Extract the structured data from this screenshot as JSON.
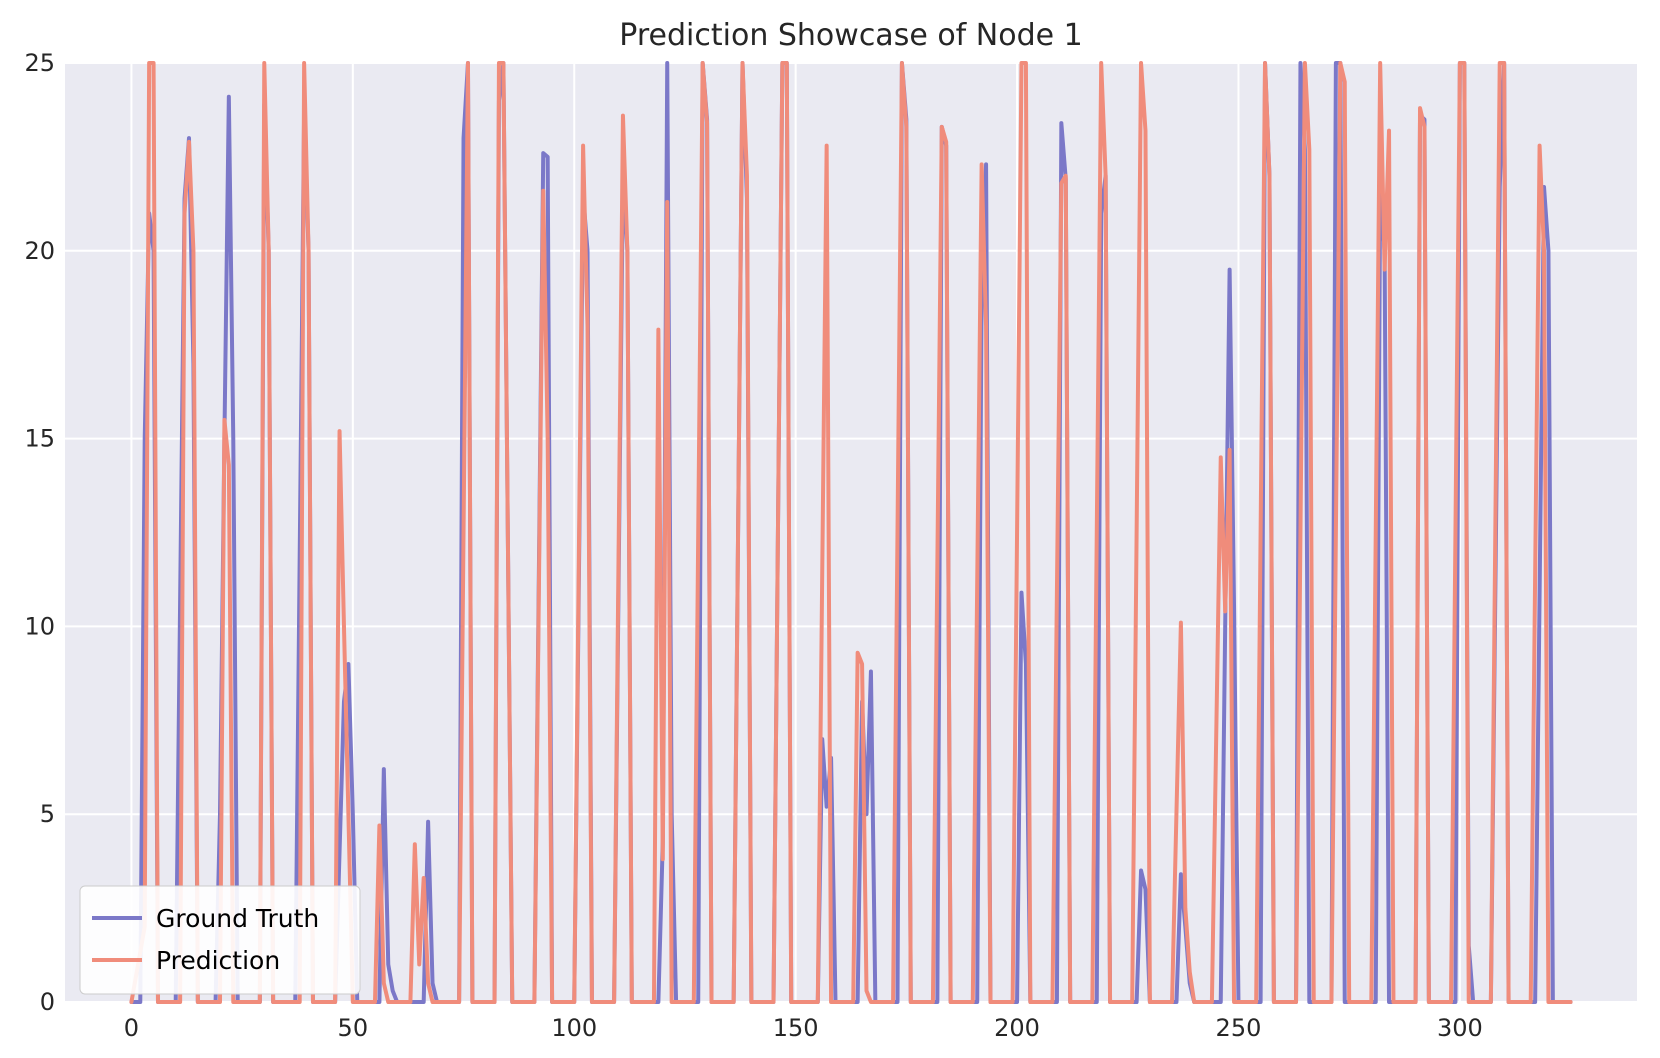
{
  "chart_data": {
    "type": "line",
    "title": "Prediction Showcase of Node 1",
    "xlabel": "",
    "ylabel": "",
    "xlim": [
      -15,
      340
    ],
    "ylim": [
      0,
      25
    ],
    "xticks": [
      0,
      50,
      100,
      150,
      200,
      250,
      300
    ],
    "yticks": [
      0,
      5,
      10,
      15,
      20,
      25
    ],
    "grid": true,
    "legend_position": "lower-left",
    "series": [
      {
        "name": "Ground Truth",
        "color": "#7b78c8",
        "points": [
          [
            0,
            0
          ],
          [
            2,
            0
          ],
          [
            3,
            15
          ],
          [
            4,
            21
          ],
          [
            5,
            20
          ],
          [
            6,
            0
          ],
          [
            10,
            0
          ],
          [
            12,
            21.4
          ],
          [
            13,
            23
          ],
          [
            14,
            17
          ],
          [
            15,
            0
          ],
          [
            19,
            0
          ],
          [
            20,
            5
          ],
          [
            21,
            15
          ],
          [
            22,
            24.1
          ],
          [
            23,
            15
          ],
          [
            24,
            0
          ],
          [
            29,
            0
          ],
          [
            30,
            23.9
          ],
          [
            31,
            20
          ],
          [
            32,
            0
          ],
          [
            37,
            0
          ],
          [
            39,
            23.7
          ],
          [
            40,
            20
          ],
          [
            41,
            0
          ],
          [
            46,
            0
          ],
          [
            48,
            8
          ],
          [
            49,
            9
          ],
          [
            50,
            5
          ],
          [
            51,
            0
          ],
          [
            56,
            0
          ],
          [
            57,
            6.2
          ],
          [
            58,
            1
          ],
          [
            59,
            0.3
          ],
          [
            60,
            0
          ],
          [
            66,
            0
          ],
          [
            67,
            4.8
          ],
          [
            68,
            0.5
          ],
          [
            69,
            0
          ],
          [
            74,
            0
          ],
          [
            75,
            23
          ],
          [
            76,
            25
          ],
          [
            77,
            0
          ],
          [
            82,
            0
          ],
          [
            83,
            24
          ],
          [
            84,
            25
          ],
          [
            86,
            0
          ],
          [
            91,
            0
          ],
          [
            93,
            22.6
          ],
          [
            94,
            22.5
          ],
          [
            95,
            0
          ],
          [
            100,
            0
          ],
          [
            102,
            21.5
          ],
          [
            103,
            20
          ],
          [
            104,
            0
          ],
          [
            109,
            0
          ],
          [
            111,
            22
          ],
          [
            112,
            20
          ],
          [
            113,
            0
          ],
          [
            119,
            0
          ],
          [
            120,
            4.3
          ],
          [
            121,
            25
          ],
          [
            122,
            5
          ],
          [
            123,
            0
          ],
          [
            128,
            0
          ],
          [
            129,
            25
          ],
          [
            130,
            23.5
          ],
          [
            131,
            0
          ],
          [
            136,
            0
          ],
          [
            138,
            25
          ],
          [
            139,
            21.4
          ],
          [
            140,
            0
          ],
          [
            145,
            0
          ],
          [
            147,
            25
          ],
          [
            148,
            25
          ],
          [
            149,
            0
          ],
          [
            155,
            0
          ],
          [
            156,
            7
          ],
          [
            157,
            5.2
          ],
          [
            158,
            6.5
          ],
          [
            159,
            0
          ],
          [
            164,
            0
          ],
          [
            165,
            8
          ],
          [
            166,
            5
          ],
          [
            167,
            8.8
          ],
          [
            168,
            0
          ],
          [
            173,
            0
          ],
          [
            174,
            25
          ],
          [
            175,
            23.5
          ],
          [
            176,
            0
          ],
          [
            182,
            0
          ],
          [
            183,
            23.3
          ],
          [
            184,
            22.8
          ],
          [
            185,
            0
          ],
          [
            191,
            0
          ],
          [
            192,
            19
          ],
          [
            193,
            22.3
          ],
          [
            194,
            0
          ],
          [
            200,
            0
          ],
          [
            201,
            10.9
          ],
          [
            202,
            9
          ],
          [
            203,
            0
          ],
          [
            209,
            0
          ],
          [
            210,
            23.4
          ],
          [
            211,
            21.9
          ],
          [
            212,
            0
          ],
          [
            218,
            0
          ],
          [
            219,
            21
          ],
          [
            220,
            22
          ],
          [
            221,
            0
          ],
          [
            227,
            0
          ],
          [
            228,
            3.5
          ],
          [
            229,
            3
          ],
          [
            230,
            0
          ],
          [
            236,
            0
          ],
          [
            237,
            3.4
          ],
          [
            238,
            2
          ],
          [
            239,
            0.5
          ],
          [
            240,
            0
          ],
          [
            246,
            0
          ],
          [
            247,
            10
          ],
          [
            248,
            19.5
          ],
          [
            249,
            10.5
          ],
          [
            250,
            0
          ],
          [
            255,
            0
          ],
          [
            256,
            25
          ],
          [
            257,
            22
          ],
          [
            258,
            0
          ],
          [
            263,
            0
          ],
          [
            264,
            25
          ],
          [
            265,
            22.7
          ],
          [
            266,
            0
          ],
          [
            271,
            0
          ],
          [
            272,
            25
          ],
          [
            273,
            25
          ],
          [
            274,
            0
          ],
          [
            281,
            0
          ],
          [
            282,
            21.8
          ],
          [
            283,
            20
          ],
          [
            284,
            0
          ],
          [
            290,
            0
          ],
          [
            291,
            23.6
          ],
          [
            292,
            23.5
          ],
          [
            293,
            0
          ],
          [
            299,
            0
          ],
          [
            300,
            25
          ],
          [
            301,
            25
          ],
          [
            302,
            1.5
          ],
          [
            303,
            0
          ],
          [
            307,
            0
          ],
          [
            309,
            21.7
          ],
          [
            310,
            25
          ],
          [
            311,
            0
          ],
          [
            317,
            0
          ],
          [
            319,
            21.7
          ],
          [
            320,
            20
          ],
          [
            321,
            0
          ],
          [
            325,
            0
          ]
        ]
      },
      {
        "name": "Prediction",
        "color": "#f08c7b",
        "points": [
          [
            0,
            0
          ],
          [
            3,
            2
          ],
          [
            4,
            25
          ],
          [
            5,
            25
          ],
          [
            6,
            0
          ],
          [
            11,
            0
          ],
          [
            12,
            21
          ],
          [
            13,
            22.9
          ],
          [
            14,
            20
          ],
          [
            15,
            0
          ],
          [
            20,
            0
          ],
          [
            21,
            15.5
          ],
          [
            22,
            14.3
          ],
          [
            23,
            0
          ],
          [
            29,
            0
          ],
          [
            30,
            25
          ],
          [
            31,
            20
          ],
          [
            32,
            0
          ],
          [
            38,
            0
          ],
          [
            39,
            25
          ],
          [
            40,
            20
          ],
          [
            41,
            0
          ],
          [
            46,
            0
          ],
          [
            47,
            15.2
          ],
          [
            48,
            10
          ],
          [
            49,
            5
          ],
          [
            50,
            0
          ],
          [
            55,
            0
          ],
          [
            56,
            4.7
          ],
          [
            57,
            0.5
          ],
          [
            58,
            0
          ],
          [
            63,
            0
          ],
          [
            64,
            4.2
          ],
          [
            65,
            1
          ],
          [
            66,
            3.3
          ],
          [
            67,
            0.5
          ],
          [
            68,
            0
          ],
          [
            74,
            0
          ],
          [
            76,
            25
          ],
          [
            77,
            0
          ],
          [
            82,
            0
          ],
          [
            83,
            25
          ],
          [
            84,
            25
          ],
          [
            86,
            0
          ],
          [
            91,
            0
          ],
          [
            93,
            21.6
          ],
          [
            94,
            15
          ],
          [
            95,
            0
          ],
          [
            100,
            0
          ],
          [
            102,
            22.8
          ],
          [
            103,
            18
          ],
          [
            104,
            0
          ],
          [
            109,
            0
          ],
          [
            111,
            23.6
          ],
          [
            112,
            20
          ],
          [
            113,
            0
          ],
          [
            118,
            0
          ],
          [
            119,
            17.9
          ],
          [
            120,
            3.8
          ],
          [
            121,
            21.3
          ],
          [
            122,
            0
          ],
          [
            127,
            0
          ],
          [
            129,
            25
          ],
          [
            130,
            23.4
          ],
          [
            131,
            0
          ],
          [
            136,
            0
          ],
          [
            138,
            25
          ],
          [
            139,
            22
          ],
          [
            140,
            0
          ],
          [
            145,
            0
          ],
          [
            147,
            25
          ],
          [
            148,
            25
          ],
          [
            149,
            0
          ],
          [
            155,
            0
          ],
          [
            157,
            22.8
          ],
          [
            158,
            0
          ],
          [
            163,
            0
          ],
          [
            164,
            9.3
          ],
          [
            165,
            9
          ],
          [
            166,
            0.3
          ],
          [
            167,
            0
          ],
          [
            172,
            0
          ],
          [
            174,
            25
          ],
          [
            175,
            23.3
          ],
          [
            176,
            0
          ],
          [
            181,
            0
          ],
          [
            183,
            23.3
          ],
          [
            184,
            22.9
          ],
          [
            185,
            0
          ],
          [
            190,
            0
          ],
          [
            192,
            22.3
          ],
          [
            193,
            18
          ],
          [
            194,
            0
          ],
          [
            199,
            0
          ],
          [
            201,
            25
          ],
          [
            202,
            25
          ],
          [
            203,
            0
          ],
          [
            208,
            0
          ],
          [
            210,
            21.8
          ],
          [
            211,
            22
          ],
          [
            212,
            0
          ],
          [
            217,
            0
          ],
          [
            219,
            25
          ],
          [
            220,
            22
          ],
          [
            221,
            0
          ],
          [
            226,
            0
          ],
          [
            228,
            25
          ],
          [
            229,
            23.2
          ],
          [
            230,
            0
          ],
          [
            235,
            0
          ],
          [
            237,
            10.1
          ],
          [
            238,
            2.5
          ],
          [
            239,
            0.8
          ],
          [
            240,
            0
          ],
          [
            244,
            0
          ],
          [
            246,
            14.5
          ],
          [
            247,
            10.4
          ],
          [
            248,
            14.7
          ],
          [
            249,
            0
          ],
          [
            254,
            0
          ],
          [
            256,
            25
          ],
          [
            257,
            22
          ],
          [
            258,
            0
          ],
          [
            263,
            0
          ],
          [
            265,
            25
          ],
          [
            266,
            22.7
          ],
          [
            267,
            0
          ],
          [
            271,
            0
          ],
          [
            273,
            25
          ],
          [
            274,
            24.5
          ],
          [
            275,
            0
          ],
          [
            280,
            0
          ],
          [
            282,
            25
          ],
          [
            283,
            19.5
          ],
          [
            284,
            23.2
          ],
          [
            285,
            0
          ],
          [
            290,
            0
          ],
          [
            291,
            23.8
          ],
          [
            292,
            23.3
          ],
          [
            293,
            0
          ],
          [
            298,
            0
          ],
          [
            300,
            25
          ],
          [
            301,
            25
          ],
          [
            302,
            0
          ],
          [
            307,
            0
          ],
          [
            309,
            25
          ],
          [
            310,
            25
          ],
          [
            311,
            0
          ],
          [
            316,
            0
          ],
          [
            318,
            22.8
          ],
          [
            319,
            20
          ],
          [
            320,
            0
          ],
          [
            325,
            0
          ]
        ]
      }
    ]
  }
}
